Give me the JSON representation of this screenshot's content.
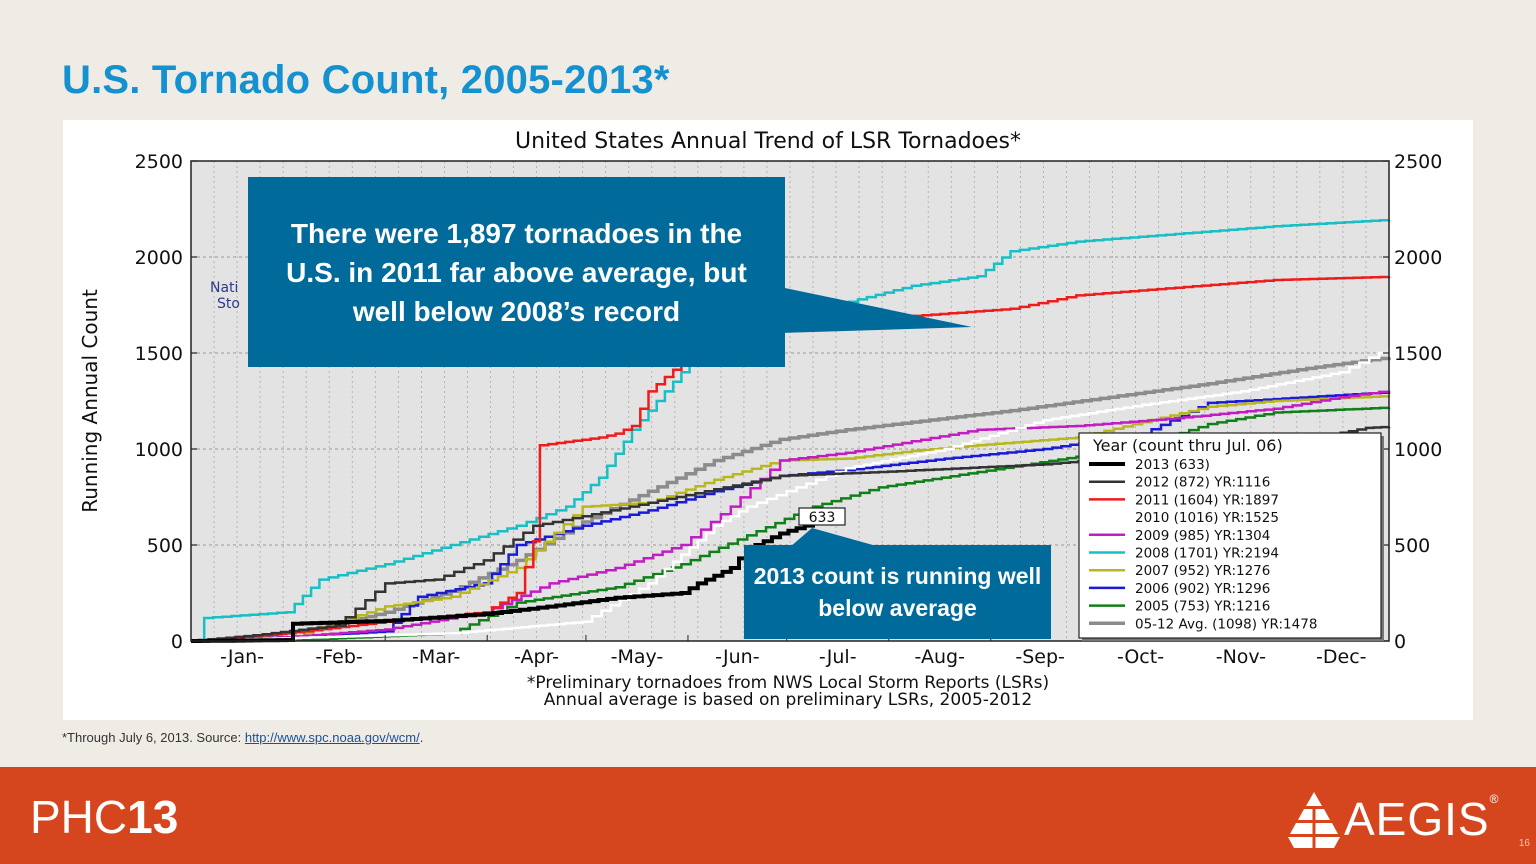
{
  "slide": {
    "title": "U.S. Tornado Count, 2005-2013*",
    "footnote_prefix": "*Through July 6, 2013. Source: ",
    "footnote_link": "http://www.spc.noaa.gov/wcm/",
    "footnote_suffix": ".",
    "callout_2011": "There were 1,897 tornadoes in the U.S. in 2011 far above average, but well below 2008’s record",
    "callout_2013": "2013 count is running well below average",
    "phc_logo_light": "PHC",
    "phc_logo_bold": "13",
    "aegis_logo": "AEGIS",
    "aegis_reg": "®",
    "page_number": "16",
    "colors": {
      "title": "#1591cf",
      "callout": "#006a9b",
      "footer": "#d6461e",
      "background": "#efece6"
    }
  },
  "chart_data": {
    "type": "line",
    "title": "United States Annual Trend of LSR Tornadoes*",
    "ylabel": "Running Annual Count",
    "ylim": [
      0,
      2500
    ],
    "yticks": [
      0,
      500,
      1000,
      1500,
      2000,
      2500
    ],
    "months": [
      "-Jan-",
      "-Feb-",
      "-Mar-",
      "-Apr-",
      "-May-",
      "-Jun-",
      "-Jul-",
      "-Aug-",
      "-Sep-",
      "-Oct-",
      "-Nov-",
      "-Dec-"
    ],
    "caption_line1": "*Preliminary tornadoes from NWS Local Storm Reports (LSRs)",
    "caption_line2": "Annual average is based on preliminary LSRs, 2005-2012",
    "partial_background_text": [
      "Nati",
      "Sto"
    ],
    "end_annotation": "633",
    "legend_title": "Year (count thru Jul. 06)",
    "legend_position": "lower-right",
    "grid": true,
    "x_unit": "day of year",
    "series": [
      {
        "name": "2013 (633)",
        "color": "#000000",
        "width": 4,
        "points": [
          [
            1,
            0
          ],
          [
            30,
            5
          ],
          [
            32,
            90
          ],
          [
            60,
            105
          ],
          [
            90,
            140
          ],
          [
            112,
            185
          ],
          [
            130,
            225
          ],
          [
            150,
            250
          ],
          [
            155,
            300
          ],
          [
            165,
            380
          ],
          [
            170,
            480
          ],
          [
            180,
            560
          ],
          [
            190,
            615
          ],
          [
            198,
            633
          ]
        ]
      },
      {
        "name": "2012 (872) YR:1116",
        "color": "#333333",
        "width": 2.5,
        "points": [
          [
            1,
            0
          ],
          [
            20,
            30
          ],
          [
            45,
            80
          ],
          [
            60,
            300
          ],
          [
            75,
            320
          ],
          [
            90,
            420
          ],
          [
            105,
            600
          ],
          [
            120,
            650
          ],
          [
            140,
            720
          ],
          [
            160,
            790
          ],
          [
            180,
            860
          ],
          [
            210,
            880
          ],
          [
            260,
            920
          ],
          [
            300,
            980
          ],
          [
            340,
            1050
          ],
          [
            358,
            1110
          ],
          [
            365,
            1116
          ]
        ]
      },
      {
        "name": "2011 (1604) YR:1897",
        "color": "#ee1c1c",
        "width": 2.5,
        "points": [
          [
            1,
            0
          ],
          [
            30,
            40
          ],
          [
            60,
            100
          ],
          [
            90,
            150
          ],
          [
            100,
            250
          ],
          [
            105,
            520
          ],
          [
            107,
            1020
          ],
          [
            125,
            1060
          ],
          [
            130,
            1080
          ],
          [
            135,
            1120
          ],
          [
            140,
            1300
          ],
          [
            150,
            1450
          ],
          [
            160,
            1580
          ],
          [
            180,
            1640
          ],
          [
            210,
            1680
          ],
          [
            250,
            1730
          ],
          [
            270,
            1800
          ],
          [
            300,
            1840
          ],
          [
            330,
            1880
          ],
          [
            365,
            1897
          ]
        ]
      },
      {
        "name": "2010 (1016) YR:1525",
        "color": "#ffffff",
        "width": 2.5,
        "points": [
          [
            1,
            0
          ],
          [
            40,
            20
          ],
          [
            80,
            40
          ],
          [
            120,
            100
          ],
          [
            140,
            300
          ],
          [
            150,
            450
          ],
          [
            160,
            600
          ],
          [
            170,
            700
          ],
          [
            185,
            800
          ],
          [
            200,
            900
          ],
          [
            230,
            1000
          ],
          [
            260,
            1150
          ],
          [
            290,
            1230
          ],
          [
            320,
            1300
          ],
          [
            350,
            1400
          ],
          [
            365,
            1525
          ]
        ]
      },
      {
        "name": "2009 (985) YR:1304",
        "color": "#c21dc5",
        "width": 2.5,
        "points": [
          [
            1,
            0
          ],
          [
            30,
            20
          ],
          [
            60,
            60
          ],
          [
            90,
            150
          ],
          [
            110,
            300
          ],
          [
            130,
            380
          ],
          [
            150,
            500
          ],
          [
            165,
            700
          ],
          [
            180,
            940
          ],
          [
            200,
            980
          ],
          [
            220,
            1040
          ],
          [
            240,
            1100
          ],
          [
            270,
            1120
          ],
          [
            300,
            1160
          ],
          [
            330,
            1210
          ],
          [
            350,
            1270
          ],
          [
            365,
            1304
          ]
        ]
      },
      {
        "name": "2008 (1701) YR:2194",
        "color": "#18bfc4",
        "width": 2.5,
        "points": [
          [
            1,
            0
          ],
          [
            5,
            120
          ],
          [
            30,
            150
          ],
          [
            40,
            320
          ],
          [
            60,
            400
          ],
          [
            80,
            500
          ],
          [
            100,
            600
          ],
          [
            115,
            700
          ],
          [
            125,
            850
          ],
          [
            135,
            1100
          ],
          [
            145,
            1300
          ],
          [
            155,
            1500
          ],
          [
            165,
            1640
          ],
          [
            175,
            1680
          ],
          [
            190,
            1720
          ],
          [
            220,
            1850
          ],
          [
            240,
            1900
          ],
          [
            250,
            2030
          ],
          [
            270,
            2080
          ],
          [
            300,
            2120
          ],
          [
            330,
            2160
          ],
          [
            365,
            2194
          ]
        ]
      },
      {
        "name": "2007 (952) YR:1276",
        "color": "#b8b81e",
        "width": 2.5,
        "points": [
          [
            1,
            0
          ],
          [
            30,
            10
          ],
          [
            60,
            180
          ],
          [
            80,
            230
          ],
          [
            100,
            380
          ],
          [
            120,
            700
          ],
          [
            140,
            720
          ],
          [
            160,
            840
          ],
          [
            180,
            940
          ],
          [
            200,
            950
          ],
          [
            220,
            990
          ],
          [
            240,
            1020
          ],
          [
            270,
            1060
          ],
          [
            290,
            1140
          ],
          [
            310,
            1220
          ],
          [
            330,
            1250
          ],
          [
            365,
            1276
          ]
        ]
      },
      {
        "name": "2006 (902) YR:1296",
        "color": "#1a1ad8",
        "width": 2.5,
        "points": [
          [
            1,
            0
          ],
          [
            30,
            20
          ],
          [
            60,
            50
          ],
          [
            70,
            230
          ],
          [
            90,
            300
          ],
          [
            100,
            500
          ],
          [
            120,
            600
          ],
          [
            140,
            680
          ],
          [
            160,
            780
          ],
          [
            180,
            860
          ],
          [
            200,
            890
          ],
          [
            230,
            950
          ],
          [
            260,
            1000
          ],
          [
            290,
            1080
          ],
          [
            310,
            1240
          ],
          [
            330,
            1260
          ],
          [
            365,
            1296
          ]
        ]
      },
      {
        "name": "2005 (753) YR:1216",
        "color": "#12801a",
        "width": 2.5,
        "points": [
          [
            1,
            0
          ],
          [
            40,
            10
          ],
          [
            80,
            40
          ],
          [
            100,
            200
          ],
          [
            130,
            280
          ],
          [
            150,
            400
          ],
          [
            170,
            550
          ],
          [
            190,
            700
          ],
          [
            210,
            800
          ],
          [
            240,
            880
          ],
          [
            270,
            960
          ],
          [
            290,
            1020
          ],
          [
            310,
            1130
          ],
          [
            330,
            1190
          ],
          [
            365,
            1216
          ]
        ]
      },
      {
        "name": "05-12 Avg. (1098) YR:1478",
        "color": "#8c8c8c",
        "width": 3.5,
        "points": [
          [
            1,
            0
          ],
          [
            20,
            20
          ],
          [
            40,
            70
          ],
          [
            60,
            150
          ],
          [
            80,
            260
          ],
          [
            100,
            420
          ],
          [
            120,
            620
          ],
          [
            140,
            780
          ],
          [
            160,
            940
          ],
          [
            180,
            1050
          ],
          [
            200,
            1100
          ],
          [
            220,
            1140
          ],
          [
            250,
            1200
          ],
          [
            280,
            1270
          ],
          [
            310,
            1340
          ],
          [
            340,
            1420
          ],
          [
            365,
            1478
          ]
        ]
      }
    ]
  }
}
